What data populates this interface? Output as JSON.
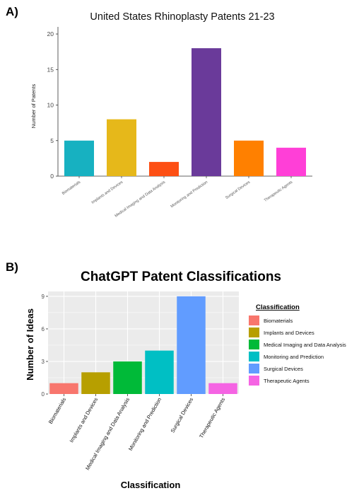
{
  "chart_data": [
    {
      "panel": "A)",
      "type": "bar",
      "title": "United States Rhinoplasty Patents 21-23",
      "xlabel": "",
      "ylabel": "Number of Patents",
      "categories": [
        "Biomaterials",
        "Implants and Devices",
        "Medical Imaging and Data Analysis",
        "Monitoring and Prediction",
        "Surgical Devices",
        "Therapeutic Agents"
      ],
      "values": [
        5,
        8,
        2,
        18,
        5,
        4
      ],
      "colors": [
        "#17b1c1",
        "#e6b81a",
        "#fd4f14",
        "#6a3a9a",
        "#ff8000",
        "#ff3fd7"
      ],
      "ylim": [
        0,
        21
      ],
      "yticks": [
        0,
        5,
        10,
        15,
        20
      ],
      "grid": false,
      "legend": "none"
    },
    {
      "panel": "B)",
      "type": "bar",
      "title": "ChatGPT Patent Classifications",
      "xlabel": "Classification",
      "ylabel": "Number of Ideas",
      "categories": [
        "Biomaterials",
        "Implants and Devices",
        "Medical Imaging and Data Analysis",
        "Monitoring and Prediction",
        "Surgical Devices",
        "Therapeutic Agents"
      ],
      "values": [
        1,
        2,
        3,
        4,
        9,
        1
      ],
      "colors": [
        "#f8766d",
        "#b79f00",
        "#00ba38",
        "#00bfc4",
        "#619cff",
        "#f564e3"
      ],
      "ylim": [
        0,
        9.45
      ],
      "yticks": [
        0,
        3,
        6,
        9
      ],
      "grid": true,
      "legend": "right",
      "legend_title": "Classification"
    }
  ]
}
